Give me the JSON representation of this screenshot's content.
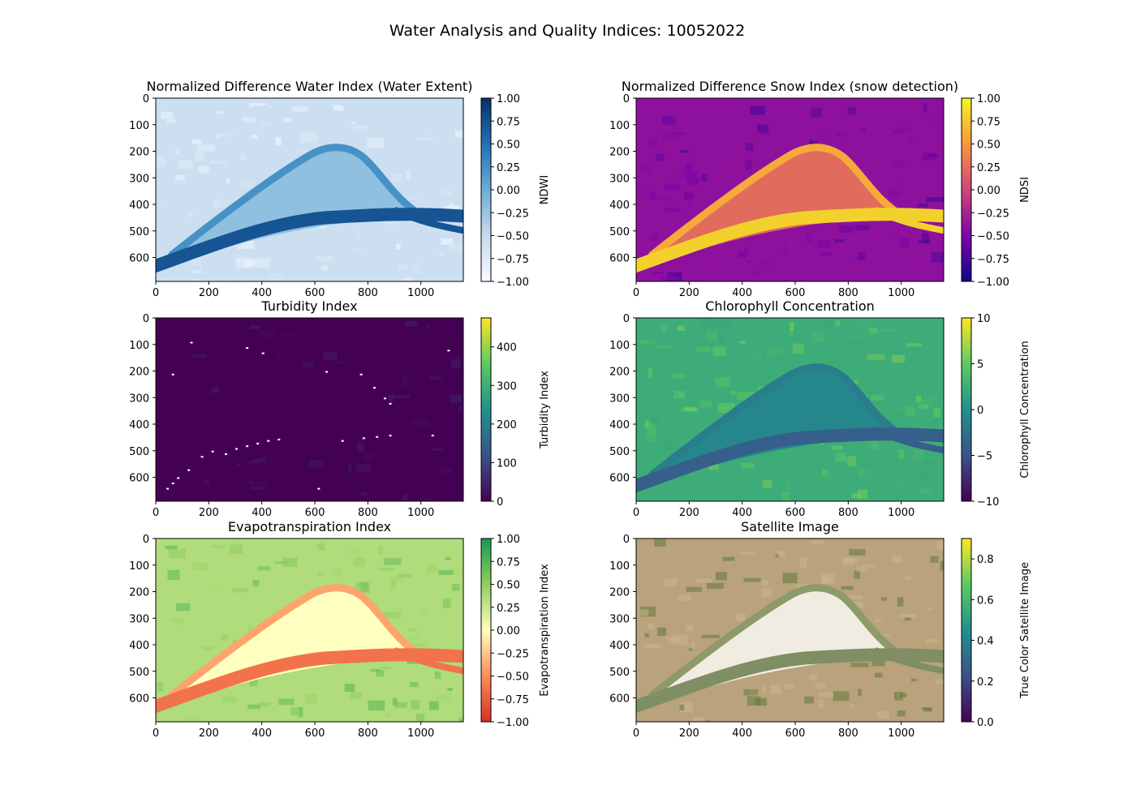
{
  "figure": {
    "suptitle": "Water Analysis and Quality Indices: 10052022"
  },
  "chart_data": [
    {
      "type": "heatmap",
      "title": "Normalized Difference Water Index (Water Extent)",
      "colorbar_label": "NDWI",
      "colormap": [
        "#f7fbff",
        "#c6dbef",
        "#6baed6",
        "#2171b5",
        "#08306b"
      ],
      "xlim": [
        0,
        1160
      ],
      "ylim": [
        690,
        0
      ],
      "xticks": [
        "0",
        "200",
        "400",
        "600",
        "800",
        "1000"
      ],
      "yticks": [
        "0",
        "100",
        "200",
        "300",
        "400",
        "500",
        "600"
      ],
      "clim": [
        -1.0,
        1.0
      ],
      "cbar_ticks": [
        "1.00",
        "0.75",
        "0.50",
        "0.25",
        "0.00",
        "−0.25",
        "−0.50",
        "−0.75",
        "−1.00"
      ],
      "levels": {
        "background": 0.22,
        "land": 0.12,
        "island": 0.4,
        "channel": 0.62,
        "river": 0.86
      }
    },
    {
      "type": "heatmap",
      "title": "Normalized Difference Snow Index (snow detection)",
      "colorbar_label": "NDSI",
      "colormap": [
        "#0d0887",
        "#7e03a8",
        "#cc4778",
        "#f89540",
        "#f0f921"
      ],
      "xlim": [
        0,
        1160
      ],
      "ylim": [
        690,
        0
      ],
      "xticks": [
        "0",
        "200",
        "400",
        "600",
        "800",
        "1000"
      ],
      "yticks": [
        "0",
        "100",
        "200",
        "300",
        "400",
        "500",
        "600"
      ],
      "clim": [
        -1.0,
        1.0
      ],
      "cbar_ticks": [
        "1.00",
        "0.75",
        "0.50",
        "0.25",
        "0.00",
        "−0.25",
        "−0.50",
        "−0.75",
        "−1.00"
      ],
      "levels": {
        "background": 0.3,
        "land": 0.22,
        "island": 0.62,
        "channel": 0.8,
        "river": 0.9
      }
    },
    {
      "type": "heatmap",
      "title": "Turbidity Index",
      "colorbar_label": "Turbidity Index",
      "colormap": [
        "#440154",
        "#3b528b",
        "#21918c",
        "#5ec962",
        "#fde725"
      ],
      "xlim": [
        0,
        1160
      ],
      "ylim": [
        690,
        0
      ],
      "xticks": [
        "0",
        "200",
        "400",
        "600",
        "800",
        "1000"
      ],
      "yticks": [
        "0",
        "100",
        "200",
        "300",
        "400",
        "500",
        "600"
      ],
      "clim": [
        0,
        475
      ],
      "cbar_ticks": [
        "400",
        "300",
        "200",
        "100",
        "0"
      ],
      "cbar_tick_values": [
        400,
        300,
        200,
        100,
        0
      ],
      "levels": {
        "background": 0.0,
        "land": 0.0,
        "island": 0.0,
        "channel": 0.0,
        "river": 0.0
      }
    },
    {
      "type": "heatmap",
      "title": "Chlorophyll Concentration",
      "colorbar_label": "Chlorophyll Concentration",
      "colormap": [
        "#440154",
        "#3b528b",
        "#21918c",
        "#5ec962",
        "#fde725"
      ],
      "xlim": [
        0,
        1160
      ],
      "ylim": [
        690,
        0
      ],
      "xticks": [
        "0",
        "200",
        "400",
        "600",
        "800",
        "1000"
      ],
      "yticks": [
        "0",
        "100",
        "200",
        "300",
        "400",
        "500",
        "600"
      ],
      "clim": [
        -10,
        10
      ],
      "cbar_ticks": [
        "10",
        "5",
        "0",
        "−5",
        "−10"
      ],
      "levels": {
        "background": 0.62,
        "land": 0.7,
        "island": 0.46,
        "channel": 0.42,
        "river": 0.3
      }
    },
    {
      "type": "heatmap",
      "title": "Evapotranspiration Index",
      "colorbar_label": "Evapotranspiration Index",
      "colormap": [
        "#d73027",
        "#fc8d59",
        "#ffffbf",
        "#91cf60",
        "#1a9850"
      ],
      "xlim": [
        0,
        1160
      ],
      "ylim": [
        690,
        0
      ],
      "xticks": [
        "0",
        "200",
        "400",
        "600",
        "800",
        "1000"
      ],
      "yticks": [
        "0",
        "100",
        "200",
        "300",
        "400",
        "500",
        "600"
      ],
      "clim": [
        -1.0,
        1.0
      ],
      "cbar_ticks": [
        "1.00",
        "0.75",
        "0.50",
        "0.25",
        "0.00",
        "−0.25",
        "−0.50",
        "−0.75",
        "−1.00"
      ],
      "levels": {
        "background": 0.68,
        "land": 0.78,
        "island": 0.5,
        "channel": 0.3,
        "river": 0.18
      }
    },
    {
      "type": "heatmap",
      "title": "Satellite Image",
      "colorbar_label": "True Color Satellite Image",
      "colormap": [
        "#440154",
        "#3b528b",
        "#21918c",
        "#5ec962",
        "#fde725"
      ],
      "xlim": [
        0,
        1160
      ],
      "ylim": [
        690,
        0
      ],
      "xticks": [
        "0",
        "200",
        "400",
        "600",
        "800",
        "1000"
      ],
      "yticks": [
        "0",
        "100",
        "200",
        "300",
        "400",
        "500",
        "600"
      ],
      "clim": [
        0.0,
        0.9
      ],
      "cbar_ticks": [
        "0.8",
        "0.6",
        "0.4",
        "0.2",
        "0.0"
      ],
      "cbar_tick_values": [
        0.8,
        0.6,
        0.4,
        0.2,
        0.0
      ],
      "true_color": {
        "background": "#b9a27c",
        "land": "#9a8a5c",
        "island": "#f1ece2",
        "channel": "#8d9a6a",
        "river": "#7f8f63"
      }
    }
  ]
}
